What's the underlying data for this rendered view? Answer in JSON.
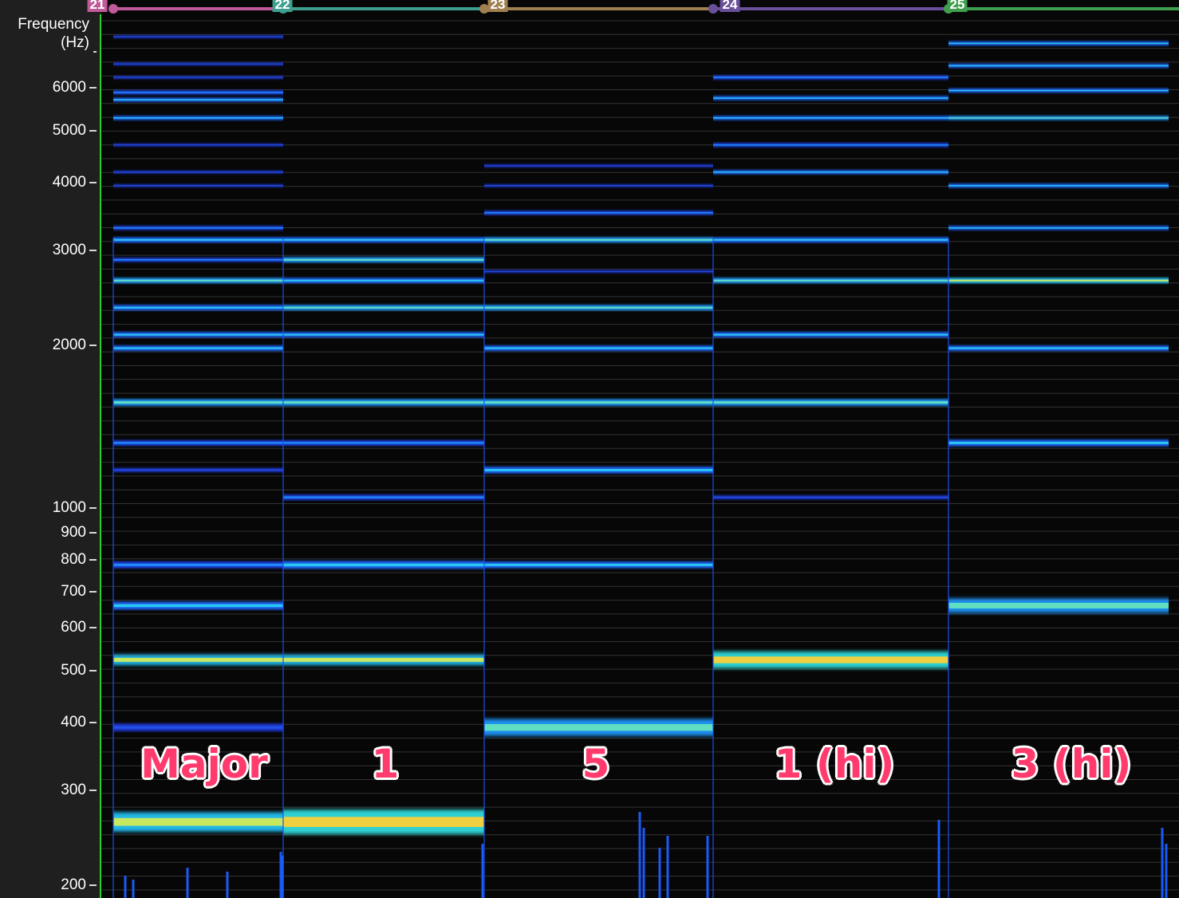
{
  "axis": {
    "title_line1": "Frequency",
    "title_line2": "(Hz)",
    "ticks": [
      {
        "value": 200,
        "label": "200"
      },
      {
        "value": 300,
        "label": "300"
      },
      {
        "value": 400,
        "label": "400"
      },
      {
        "value": 500,
        "label": "500"
      },
      {
        "value": 600,
        "label": "600"
      },
      {
        "value": 700,
        "label": "700"
      },
      {
        "value": 800,
        "label": "800"
      },
      {
        "value": 900,
        "label": "900"
      },
      {
        "value": 1000,
        "label": "1000"
      },
      {
        "value": 2000,
        "label": "2000"
      },
      {
        "value": 3000,
        "label": "3000"
      },
      {
        "value": 4000,
        "label": "4000"
      },
      {
        "value": 5000,
        "label": "5000"
      },
      {
        "value": 6000,
        "label": "6000"
      }
    ],
    "scale": "log",
    "range_hz": [
      190,
      8200
    ],
    "tick_color": "#d8d8d8",
    "axis_line_color": "#2bd12b"
  },
  "markers": [
    {
      "label": "21",
      "color": "#c05a9a"
    },
    {
      "label": "22",
      "color": "#3f9f8f"
    },
    {
      "label": "23",
      "color": "#a08050"
    },
    {
      "label": "24",
      "color": "#6a4f9a"
    },
    {
      "label": "25",
      "color": "#3f9f4f"
    }
  ],
  "segments": [
    {
      "label": "Major",
      "harmonics": [
        {
          "hz": 262,
          "level": 0.75,
          "width": 14
        },
        {
          "hz": 392,
          "level": 0.25,
          "width": 5
        },
        {
          "hz": 523,
          "level": 0.8,
          "width": 7
        },
        {
          "hz": 659,
          "level": 0.45,
          "width": 5
        },
        {
          "hz": 784,
          "level": 0.35,
          "width": 4
        },
        {
          "hz": 1175,
          "level": 0.2,
          "width": 2
        },
        {
          "hz": 1319,
          "level": 0.35,
          "width": 3
        },
        {
          "hz": 1568,
          "level": 0.6,
          "width": 4
        },
        {
          "hz": 1976,
          "level": 0.45,
          "width": 3
        },
        {
          "hz": 2093,
          "level": 0.45,
          "width": 3
        },
        {
          "hz": 2349,
          "level": 0.55,
          "width": 3
        },
        {
          "hz": 2637,
          "level": 0.6,
          "width": 3
        },
        {
          "hz": 2880,
          "level": 0.4,
          "width": 2
        },
        {
          "hz": 3136,
          "level": 0.5,
          "width": 3
        },
        {
          "hz": 3300,
          "level": 0.4,
          "width": 2
        },
        {
          "hz": 3951,
          "level": 0.2,
          "width": 1
        },
        {
          "hz": 4186,
          "level": 0.25,
          "width": 1
        },
        {
          "hz": 4700,
          "level": 0.2,
          "width": 1
        },
        {
          "hz": 5274,
          "level": 0.5,
          "width": 2
        },
        {
          "hz": 5700,
          "level": 0.45,
          "width": 2
        },
        {
          "hz": 5880,
          "level": 0.4,
          "width": 2
        },
        {
          "hz": 6270,
          "level": 0.2,
          "width": 1
        },
        {
          "hz": 6640,
          "level": 0.2,
          "width": 1
        },
        {
          "hz": 7460,
          "level": 0.15,
          "width": 1
        }
      ]
    },
    {
      "label": "1",
      "harmonics": [
        {
          "hz": 262,
          "level": 1.0,
          "width": 18
        },
        {
          "hz": 523,
          "level": 0.85,
          "width": 7
        },
        {
          "hz": 784,
          "level": 0.45,
          "width": 5
        },
        {
          "hz": 1046,
          "level": 0.3,
          "width": 3
        },
        {
          "hz": 1319,
          "level": 0.4,
          "width": 3
        },
        {
          "hz": 1568,
          "level": 0.6,
          "width": 4
        },
        {
          "hz": 2093,
          "level": 0.5,
          "width": 3
        },
        {
          "hz": 2349,
          "level": 0.65,
          "width": 3
        },
        {
          "hz": 2637,
          "level": 0.55,
          "width": 3
        },
        {
          "hz": 2880,
          "level": 0.6,
          "width": 3
        },
        {
          "hz": 3136,
          "level": 0.5,
          "width": 3
        }
      ]
    },
    {
      "label": "5",
      "harmonics": [
        {
          "hz": 392,
          "level": 0.65,
          "width": 12
        },
        {
          "hz": 784,
          "level": 0.45,
          "width": 4
        },
        {
          "hz": 1175,
          "level": 0.45,
          "width": 4
        },
        {
          "hz": 1568,
          "level": 0.7,
          "width": 4
        },
        {
          "hz": 1976,
          "level": 0.45,
          "width": 3
        },
        {
          "hz": 2349,
          "level": 0.6,
          "width": 3
        },
        {
          "hz": 2740,
          "level": 0.2,
          "width": 1
        },
        {
          "hz": 3136,
          "level": 0.7,
          "width": 3
        },
        {
          "hz": 3520,
          "level": 0.35,
          "width": 2
        },
        {
          "hz": 3951,
          "level": 0.25,
          "width": 1
        },
        {
          "hz": 4300,
          "level": 0.2,
          "width": 1
        }
      ]
    },
    {
      "label": "1 (hi)",
      "harmonics": [
        {
          "hz": 523,
          "level": 0.95,
          "width": 12
        },
        {
          "hz": 1046,
          "level": 0.2,
          "width": 2
        },
        {
          "hz": 1568,
          "level": 0.6,
          "width": 4
        },
        {
          "hz": 2093,
          "level": 0.5,
          "width": 3
        },
        {
          "hz": 2637,
          "level": 0.65,
          "width": 3
        },
        {
          "hz": 3136,
          "level": 0.55,
          "width": 3
        },
        {
          "hz": 4186,
          "level": 0.45,
          "width": 2
        },
        {
          "hz": 4700,
          "level": 0.35,
          "width": 2
        },
        {
          "hz": 5274,
          "level": 0.5,
          "width": 2
        },
        {
          "hz": 5740,
          "level": 0.45,
          "width": 2
        },
        {
          "hz": 6270,
          "level": 0.4,
          "width": 2
        }
      ]
    },
    {
      "label": "3 (hi)",
      "harmonics": [
        {
          "hz": 659,
          "level": 0.7,
          "width": 10
        },
        {
          "hz": 1319,
          "level": 0.55,
          "width": 4
        },
        {
          "hz": 1976,
          "level": 0.5,
          "width": 3
        },
        {
          "hz": 2637,
          "level": 0.75,
          "width": 3
        },
        {
          "hz": 3300,
          "level": 0.5,
          "width": 2
        },
        {
          "hz": 3951,
          "level": 0.45,
          "width": 2
        },
        {
          "hz": 5274,
          "level": 0.65,
          "width": 2
        },
        {
          "hz": 5930,
          "level": 0.5,
          "width": 2
        },
        {
          "hz": 6590,
          "level": 0.45,
          "width": 2
        },
        {
          "hz": 7250,
          "level": 0.45,
          "width": 2
        }
      ]
    }
  ],
  "colors": {
    "background": "#070707",
    "axis_panel": "#1f1f1f",
    "gridline": "#333333",
    "label_fill": "#ff3b6e",
    "label_outline": "#ffffff"
  }
}
